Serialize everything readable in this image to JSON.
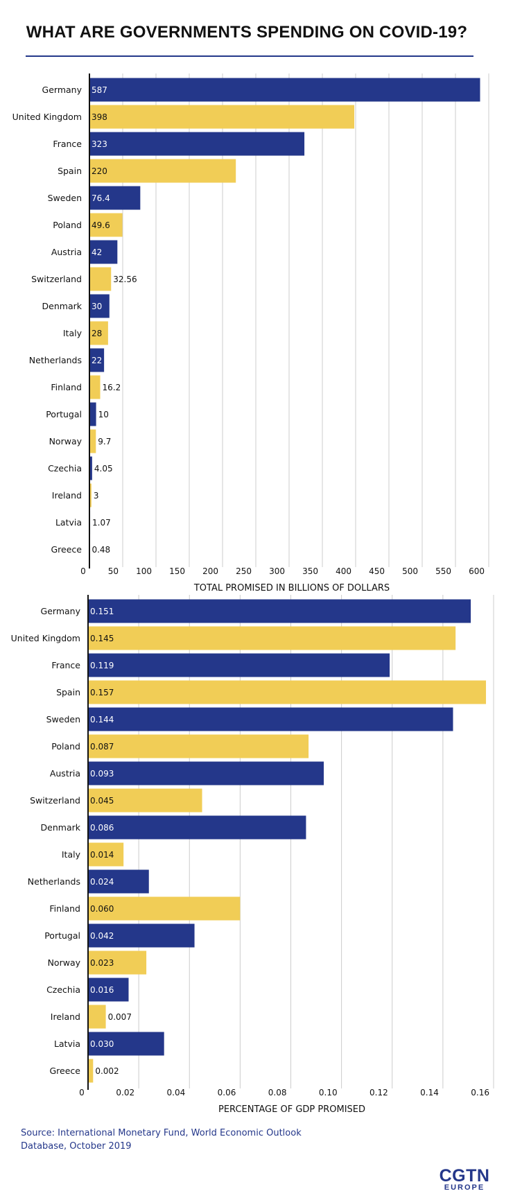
{
  "title": "WHAT ARE GOVERNMENTS SPENDING ON COVID-19?",
  "colors": {
    "blue": "#24378a",
    "yellow": "#f1cd56",
    "grid": "#cccccc",
    "axis": "#111111"
  },
  "chart_data": [
    {
      "type": "bar",
      "orientation": "horizontal",
      "xlabel": "TOTAL PROMISED IN BILLIONS OF DOLLARS",
      "xlim": [
        0,
        600
      ],
      "xticks": [
        0,
        50,
        100,
        150,
        200,
        250,
        300,
        350,
        400,
        450,
        500,
        550,
        600
      ],
      "tick_labels": [
        "0",
        "50",
        "100",
        "150",
        "200",
        "250",
        "300",
        "350",
        "400",
        "450",
        "500",
        "550",
        "600"
      ],
      "grid": true,
      "categories": [
        "Germany",
        "United Kingdom",
        "France",
        "Spain",
        "Sweden",
        "Poland",
        "Austria",
        "Switzerland",
        "Denmark",
        "Italy",
        "Netherlands",
        "Finland",
        "Portugal",
        "Norway",
        "Czechia",
        "Ireland",
        "Latvia",
        "Greece"
      ],
      "values": [
        587,
        398,
        323,
        220,
        76.4,
        49.6,
        42,
        32.56,
        30,
        28,
        22,
        16.2,
        10,
        9.7,
        4.05,
        3,
        1.07,
        0.48
      ],
      "labels": [
        "587",
        "398",
        "323",
        "220",
        "76.4",
        "49.6",
        "42",
        "32.56",
        "30",
        "28",
        "22",
        "16.2",
        "10",
        "9.7",
        "4.05",
        "3",
        "1.07",
        "0.48"
      ]
    },
    {
      "type": "bar",
      "orientation": "horizontal",
      "xlabel": "PERCENTAGE OF GDP PROMISED",
      "xlim": [
        0,
        0.16
      ],
      "xticks": [
        0,
        0.02,
        0.04,
        0.06,
        0.08,
        0.1,
        0.12,
        0.14,
        0.16
      ],
      "tick_labels": [
        "0",
        "0.02",
        "0.04",
        "0.06",
        "0.08",
        "0.10",
        "0.12",
        "0.14",
        "0.16"
      ],
      "grid": true,
      "categories": [
        "Germany",
        "United Kingdom",
        "France",
        "Spain",
        "Sweden",
        "Poland",
        "Austria",
        "Switzerland",
        "Denmark",
        "Italy",
        "Netherlands",
        "Finland",
        "Portugal",
        "Norway",
        "Czechia",
        "Ireland",
        "Latvia",
        "Greece"
      ],
      "values": [
        0.151,
        0.145,
        0.119,
        0.157,
        0.144,
        0.087,
        0.093,
        0.045,
        0.086,
        0.014,
        0.024,
        0.06,
        0.042,
        0.023,
        0.016,
        0.007,
        0.03,
        0.002
      ],
      "labels": [
        "0.151",
        "0.145",
        "0.119",
        "0.157",
        "0.144",
        "0.087",
        "0.093",
        "0.045",
        "0.086",
        "0.014",
        "0.024",
        "0.060",
        "0.042",
        "0.023",
        "0.016",
        "0.007",
        "0.030",
        "0.002"
      ]
    }
  ],
  "source": "Source: International Monetary Fund, World Economic Outlook Database, October 2019",
  "logo": {
    "main": "CGTN",
    "sub": "EUROPE"
  }
}
